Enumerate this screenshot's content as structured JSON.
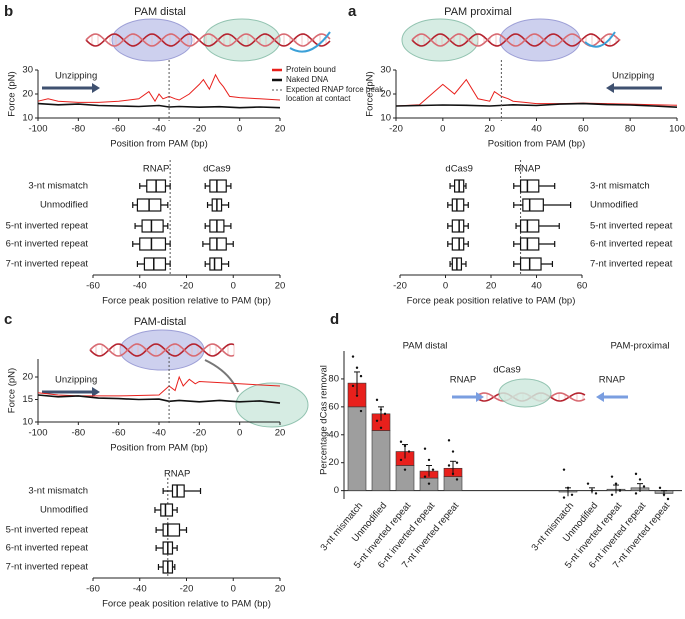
{
  "chart_data": [
    {
      "type": "line",
      "panel": "b",
      "title": "PAM distal",
      "annotation": "Unzipping",
      "xlabel": "Position from PAM (bp)",
      "ylabel": "Force (pN)",
      "xlim": [
        -100,
        20
      ],
      "xticks": [
        -100,
        -80,
        -60,
        -40,
        -20,
        0,
        20
      ],
      "ylim": [
        10,
        30
      ],
      "yticks": [
        10,
        20,
        30
      ],
      "vline": -35,
      "vline_label": "Expected RNAP force peak location at contact",
      "legend": true,
      "series": [
        {
          "name": "Protein bound",
          "color": "#e8201c",
          "x": [
            -100,
            -95,
            -90,
            -80,
            -70,
            -60,
            -50,
            -45,
            -42,
            -40,
            -38,
            -35,
            -32,
            -30,
            -25,
            -20,
            -18,
            -15,
            -12,
            -10,
            -8,
            -5,
            0,
            10,
            20
          ],
          "values": [
            17,
            18,
            17,
            16.5,
            16.5,
            17,
            18,
            21,
            17,
            20,
            18,
            19,
            18,
            17.5,
            20,
            24,
            26,
            22,
            28,
            25,
            23,
            19,
            18.5,
            18,
            17.5
          ]
        },
        {
          "name": "Naked DNA",
          "color": "#111111",
          "x": [
            -100,
            -90,
            -80,
            -70,
            -60,
            -50,
            -40,
            -35,
            -30,
            -20,
            -10,
            0,
            10,
            20
          ],
          "values": [
            16,
            15.5,
            15.8,
            15.2,
            15,
            14.8,
            15.2,
            14.6,
            14.8,
            14.5,
            14.7,
            14.3,
            14.6,
            14.3
          ]
        }
      ]
    },
    {
      "type": "box",
      "xlabel": "Force peak position relative to PAM (bp)",
      "xlim": [
        -60,
        20
      ],
      "xticks": [
        -60,
        -40,
        -20,
        0,
        20
      ],
      "vline": -27,
      "categories": [
        "3-nt mismatch",
        "Unmodified",
        "5-nt inverted repeat",
        "6-nt inverted repeat",
        "7-nt inverted repeat"
      ],
      "series": [
        {
          "name": "RNAP",
          "boxes": [
            [
              -40,
              -37,
              -33,
              -29,
              -27
            ],
            [
              -43,
              -41,
              -36,
              -31,
              -28
            ],
            [
              -42,
              -39,
              -35,
              -30,
              -28
            ],
            [
              -43,
              -40,
              -35,
              -29,
              -27
            ],
            [
              -41,
              -38,
              -34,
              -29,
              -27
            ]
          ]
        },
        {
          "name": "dCas9",
          "boxes": [
            [
              -12,
              -10,
              -7,
              -3,
              -1
            ],
            [
              -11,
              -9,
              -7,
              -5,
              -2
            ],
            [
              -12,
              -10,
              -7,
              -4,
              -1
            ],
            [
              -13,
              -10,
              -7,
              -3,
              0
            ],
            [
              -12,
              -10,
              -8,
              -5,
              -2
            ]
          ]
        }
      ]
    },
    {
      "type": "line",
      "panel": "a",
      "title": "PAM proximal",
      "annotation": "Unzipping",
      "xlabel": "Position from PAM (bp)",
      "ylabel": "Force (pN)",
      "xlim": [
        -20,
        100
      ],
      "xticks": [
        -20,
        0,
        20,
        40,
        60,
        80,
        100
      ],
      "ylim": [
        10,
        30
      ],
      "yticks": [
        10,
        20,
        30
      ],
      "vline": 25,
      "series": [
        {
          "color": "#e8201c",
          "x": [
            -20,
            -10,
            0,
            5,
            10,
            15,
            20,
            22,
            25,
            28,
            30,
            35,
            40,
            50,
            60,
            70,
            80,
            90,
            100
          ],
          "values": [
            15,
            15.5,
            24,
            20,
            26,
            18,
            17,
            21,
            19,
            18,
            17,
            16.5,
            16,
            16,
            16.2,
            16,
            15.8,
            15.5,
            15.3
          ]
        },
        {
          "color": "#111111",
          "x": [
            -20,
            -10,
            0,
            10,
            20,
            30,
            40,
            50,
            60,
            70,
            80,
            90,
            100
          ],
          "values": [
            15,
            15.2,
            15.4,
            15.3,
            15,
            15.5,
            15.2,
            15.8,
            16,
            15.6,
            15.4,
            15,
            14.5
          ]
        }
      ]
    },
    {
      "type": "box",
      "xlabel": "Force peak position relative to PAM (bp)",
      "xlim": [
        -20,
        60
      ],
      "xticks": [
        -20,
        0,
        20,
        40,
        60
      ],
      "vline": 33,
      "categories": [
        "3-nt mismatch",
        "Unmodified",
        "5-nt inverted repeat",
        "6-nt inverted repeat",
        "7-nt inverted repeat"
      ],
      "series": [
        {
          "name": "dCas9",
          "boxes": [
            [
              2,
              4,
              6,
              8,
              9
            ],
            [
              1,
              3,
              5,
              8,
              10
            ],
            [
              1,
              3,
              6,
              8,
              10
            ],
            [
              1,
              3,
              6,
              8,
              10
            ],
            [
              2,
              3,
              5,
              7,
              9
            ]
          ]
        },
        {
          "name": "RNAP",
          "boxes": [
            [
              30,
              33,
              36,
              41,
              48
            ],
            [
              30,
              34,
              37,
              43,
              55
            ],
            [
              31,
              33,
              36,
              41,
              50
            ],
            [
              30,
              33,
              36,
              41,
              48
            ],
            [
              30,
              33,
              37,
              42,
              47
            ]
          ]
        }
      ]
    },
    {
      "type": "line",
      "panel": "c",
      "title": "PAM-distal",
      "annotation": "Unzipping",
      "xlabel": "Position from PAM (bp)",
      "ylabel": "Force (pN)",
      "xlim": [
        -100,
        20
      ],
      "xticks": [
        -100,
        -80,
        -60,
        -40,
        -20,
        0,
        20
      ],
      "ylim": [
        10,
        24
      ],
      "yticks": [
        10,
        15,
        20
      ],
      "vline": -35,
      "series": [
        {
          "color": "#e8201c",
          "x": [
            -100,
            -90,
            -80,
            -60,
            -40,
            -35,
            -32,
            -30,
            -28,
            -25,
            -22,
            -20,
            0,
            20
          ],
          "values": [
            16.5,
            16,
            15.8,
            15.8,
            16,
            18,
            17,
            20,
            18,
            19.5,
            18.5,
            19,
            18.5,
            18
          ]
        },
        {
          "color": "#111111",
          "x": [
            -100,
            -90,
            -80,
            -70,
            -60,
            -50,
            -40,
            -35,
            -30,
            -20,
            -10,
            0,
            10,
            20
          ],
          "values": [
            16,
            15.6,
            15.8,
            15.3,
            15.2,
            15,
            15.1,
            14.6,
            14.8,
            14.5,
            14.8,
            14.5,
            14.7,
            14.2
          ]
        }
      ]
    },
    {
      "type": "box",
      "xlabel": "Force peak position relative to PAM (bp)",
      "xlim": [
        -60,
        20
      ],
      "xticks": [
        -60,
        -40,
        -20,
        0,
        20
      ],
      "vline": -28,
      "categories": [
        "3-nt mismatch",
        "Unmodified",
        "5-nt inverted repeat",
        "6-nt inverted repeat",
        "7-nt inverted repeat"
      ],
      "series": [
        {
          "name": "RNAP",
          "boxes": [
            [
              -30,
              -26,
              -24,
              -21,
              -14
            ],
            [
              -33.5,
              -31,
              -29,
              -26,
              -24
            ],
            [
              -33,
              -30,
              -28,
              -23,
              -20
            ],
            [
              -33,
              -30,
              -28,
              -26,
              -24
            ],
            [
              -32,
              -30,
              -28,
              -26,
              -25
            ]
          ]
        }
      ]
    },
    {
      "type": "stacked_bar",
      "panel": "d",
      "ylabel": "Percentage dCas removal",
      "group_titles": [
        "PAM distal",
        "PAM-proximal"
      ],
      "illustration_labels": [
        "RNAP",
        "dCas9",
        "RNAP"
      ],
      "ylim": [
        -6,
        100
      ],
      "yticks": [
        0,
        20,
        40,
        60,
        80
      ],
      "categories": [
        "3-nt mismatch",
        "Unmodified",
        "5-nt inverted repeat",
        "6-nt inverted repeat",
        "7-nt inverted repeat",
        "3-nt mismatch",
        "Unmodified",
        "5-nt inverted repeat",
        "6-nt inverted repeat",
        "7-nt inverted repeat"
      ],
      "series": [
        {
          "color": "#9e9e9e",
          "values": [
            60,
            43,
            18,
            9,
            10,
            -1,
            0,
            1,
            2,
            -2
          ]
        },
        {
          "color": "#e8201c",
          "values": [
            17,
            12,
            10,
            5,
            6,
            0,
            0,
            0,
            0,
            0
          ]
        }
      ],
      "errors": [
        8,
        5,
        5,
        4,
        5,
        3,
        2,
        3,
        3,
        2
      ],
      "points": [
        [
          96,
          88,
          82,
          75,
          68,
          57
        ],
        [
          65,
          58,
          55,
          50,
          45
        ],
        [
          35,
          32,
          28,
          22,
          15
        ],
        [
          30,
          22,
          15,
          10,
          5
        ],
        [
          36,
          28,
          20,
          18,
          12,
          8
        ],
        [
          15,
          2,
          -3,
          -5
        ],
        [
          5,
          0,
          -2
        ],
        [
          10,
          5,
          0,
          -3
        ],
        [
          12,
          8,
          3,
          -2
        ],
        [
          2,
          -3,
          -6
        ]
      ]
    }
  ]
}
